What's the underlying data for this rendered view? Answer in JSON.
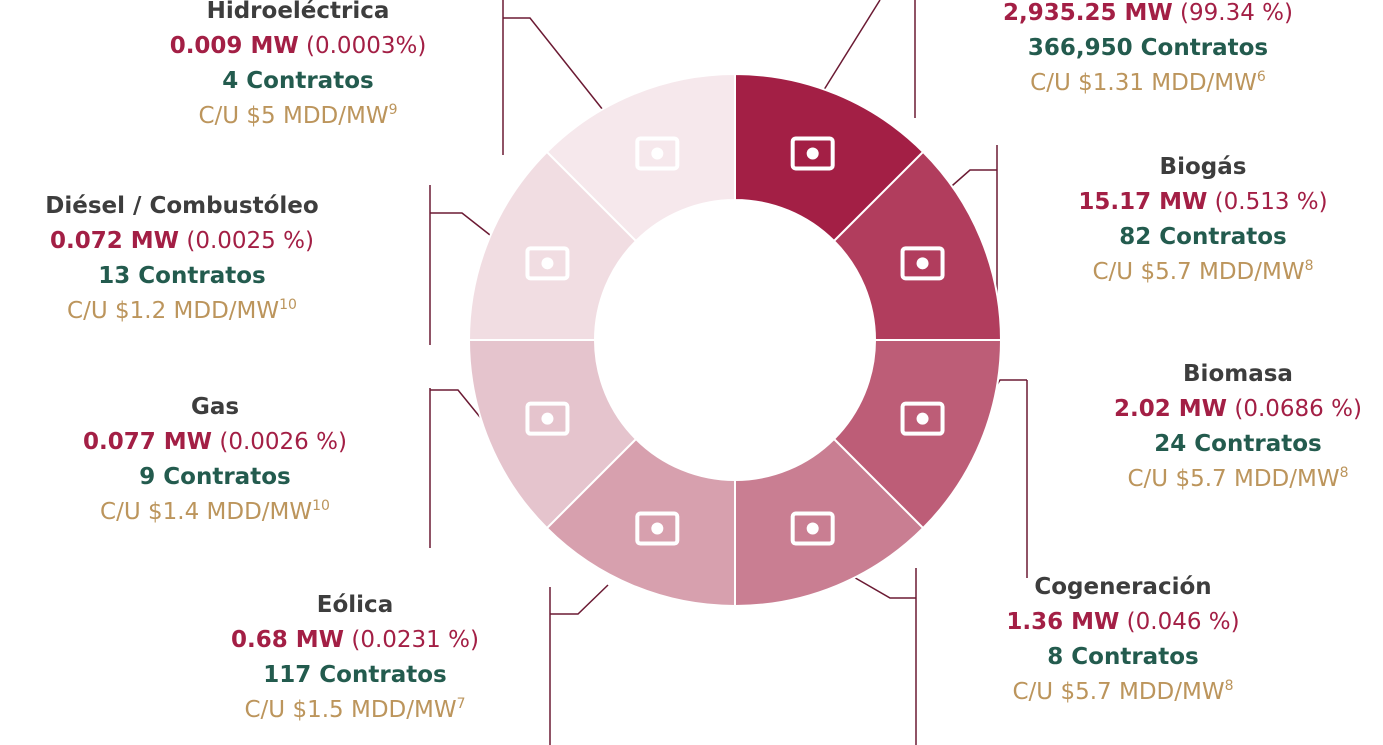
{
  "segments": [
    {
      "name": null,
      "mw": "2,935.25 MW",
      "share": "(99.34 %)",
      "contracts": "366,950 Contratos",
      "cost": "C/U $1.31 MDD/MW",
      "note": "6",
      "color": "#a31f45"
    },
    {
      "name": "Biogás",
      "mw": "15.17 MW",
      "share": "(0.513 %)",
      "contracts": "82 Contratos",
      "cost": "C/U $5.7 MDD/MW",
      "note": "8",
      "color": "#b13d5d"
    },
    {
      "name": "Biomasa",
      "mw": "2.02 MW",
      "share": "(0.0686 %)",
      "contracts": "24 Contratos",
      "cost": "C/U $5.7 MDD/MW",
      "note": "8",
      "color": "#bd5d77"
    },
    {
      "name": "Cogeneración",
      "mw": "1.36 MW",
      "share": "(0.046 %)",
      "contracts": "8 Contratos",
      "cost": "C/U $5.7 MDD/MW",
      "note": "8",
      "color": "#c97e92"
    },
    {
      "name": "Eólica",
      "mw": "0.68 MW",
      "share": "(0.0231 %)",
      "contracts": "117 Contratos",
      "cost": "C/U $1.5 MDD/MW",
      "note": "7",
      "color": "#d7a0ae"
    },
    {
      "name": "Gas",
      "mw": "0.077 MW",
      "share": "(0.0026 %)",
      "contracts": "9 Contratos",
      "cost": "C/U $1.4 MDD/MW",
      "note": "10",
      "color": "#e5c4cd"
    },
    {
      "name": "Diésel / Combustóleo",
      "mw": "0.072 MW",
      "share": "(0.0025 %)",
      "contracts": "13 Contratos",
      "cost": "C/U $1.2 MDD/MW",
      "note": "10",
      "color": "#f1dde2"
    },
    {
      "name": "Hidroeléctrica",
      "mw": "0.009 MW",
      "share": "(0.0003%)",
      "contracts": "4 Contratos",
      "cost": "C/U $5 MDD/MW",
      "note": "9",
      "color": "#f6e8ec"
    }
  ]
}
